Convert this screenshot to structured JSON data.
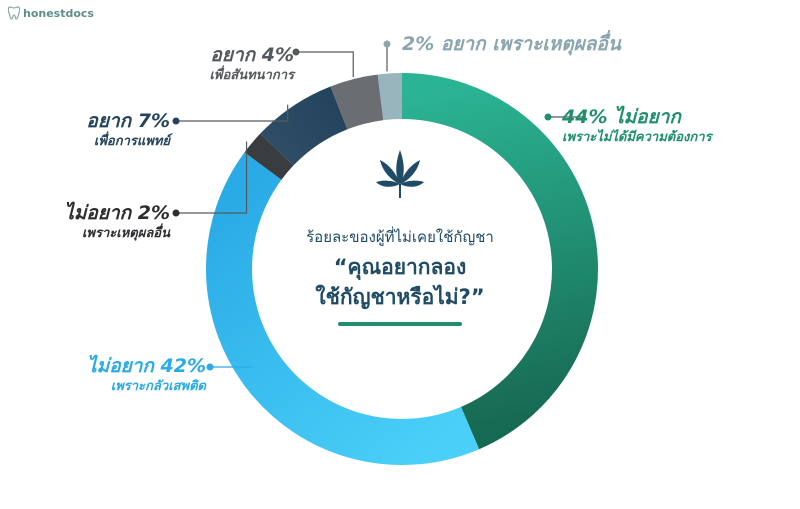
{
  "brand": {
    "name": "honestdocs"
  },
  "center": {
    "subtitle": "ร้อยละของผู้ที่ไม่เคยใช้กัญชา",
    "question_line1": "“คุณอยากลอง",
    "question_line2": "ใช้กัญชาหรือไม่?”",
    "icon": "cannabis-leaf-icon",
    "accent_color": "#1f8f6e"
  },
  "chart_data": {
    "type": "pie",
    "donut": true,
    "unit": "%",
    "series": [
      {
        "value": 44,
        "main": "44% ไม่อยาก",
        "sub": "เพราะไม่ได้มีความต้องการ",
        "color_start": "#2bb494",
        "color_end": "#176a52"
      },
      {
        "value": 42,
        "main": "ไม่อยาก 42%",
        "sub": "เพราะกลัวเสพติด",
        "color_start": "#4ad0f8",
        "color_end": "#2aaae6"
      },
      {
        "value": 2,
        "main": "ไม่อยาก 2%",
        "sub": "เพราะเหตุผลอื่น",
        "color_start": "#3a3d40",
        "color_end": "#3a3d40"
      },
      {
        "value": 7,
        "main": "อยาก 7%",
        "sub": "เพื่อการแพทย์",
        "color_start": "#2e4d66",
        "color_end": "#24445e"
      },
      {
        "value": 4,
        "main": "อยาก 4%",
        "sub": "เพื่อสันทนาการ",
        "color_start": "#6a6e72",
        "color_end": "#6a6e72"
      },
      {
        "value": 2,
        "main": "2% อยาก เพราะเหตุผลอื่น",
        "sub": "",
        "color_start": "#98b4bc",
        "color_end": "#98b4bc"
      }
    ],
    "label_colors": [
      "#1f8f6e",
      "#2aaae6",
      "#2b2d30",
      "#24445e",
      "#55595d",
      "#8aa5ae"
    ]
  }
}
